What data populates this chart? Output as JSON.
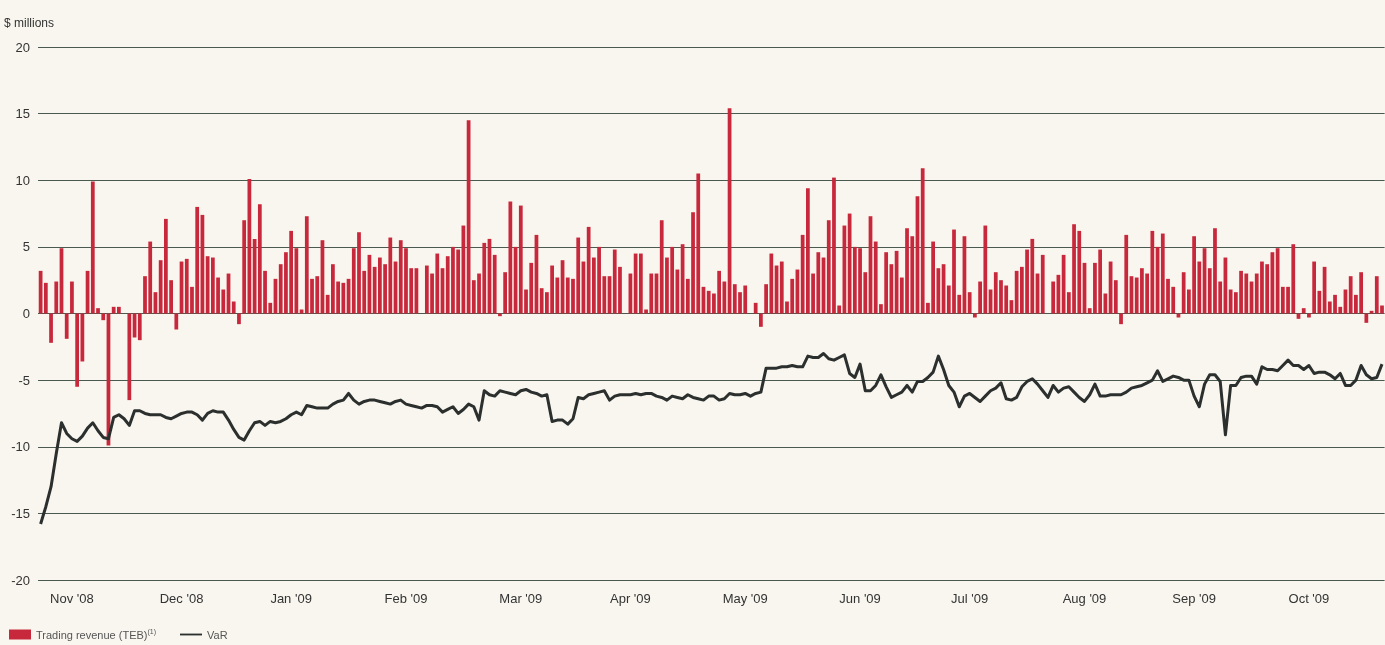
{
  "chart_data": {
    "type": "bar",
    "ylabel": "$ millions",
    "categories": [
      null,
      null,
      null,
      null,
      null,
      null,
      "Nov '08",
      null,
      null,
      null,
      null,
      null,
      null,
      null,
      null,
      null,
      null,
      null,
      null,
      null,
      null,
      null,
      null,
      null,
      null,
      null,
      null,
      "Dec '08",
      null,
      null,
      null,
      null,
      null,
      null,
      null,
      null,
      null,
      null,
      null,
      null,
      null,
      null,
      null,
      null,
      null,
      null,
      null,
      null,
      "Jan '09",
      null,
      null,
      null,
      null,
      null,
      null,
      null,
      null,
      null,
      null,
      null,
      null,
      null,
      null,
      null,
      null,
      null,
      null,
      null,
      null,
      null,
      "Feb '09",
      null,
      null,
      null,
      null,
      null,
      null,
      null,
      null,
      null,
      null,
      null,
      null,
      null,
      null,
      null,
      null,
      null,
      null,
      null,
      null,
      null,
      "Mar '09",
      null,
      null,
      null,
      null,
      null,
      null,
      null,
      null,
      null,
      null,
      null,
      null,
      null,
      null,
      null,
      null,
      null,
      null,
      null,
      null,
      "Apr '09",
      null,
      null,
      null,
      null,
      null,
      null,
      null,
      null,
      null,
      null,
      null,
      null,
      null,
      null,
      null,
      null,
      null,
      null,
      null,
      null,
      null,
      "May '09",
      null,
      null,
      null,
      null,
      null,
      null,
      null,
      null,
      null,
      null,
      null,
      null,
      null,
      null,
      null,
      null,
      null,
      null,
      null,
      null,
      null,
      "Jun '09",
      null,
      null,
      null,
      null,
      null,
      null,
      null,
      null,
      null,
      null,
      null,
      null,
      null,
      null,
      null,
      null,
      null,
      null,
      null,
      null,
      "Jul '09",
      null,
      null,
      null,
      null,
      null,
      null,
      null,
      null,
      null,
      null,
      null,
      null,
      null,
      null,
      null,
      null,
      null,
      null,
      null,
      null,
      null,
      "Aug '09",
      null,
      null,
      null,
      null,
      null,
      null,
      null,
      null,
      null,
      null,
      null,
      null,
      null,
      null,
      null,
      null,
      null,
      null,
      null,
      null,
      "Sep '09",
      null,
      null,
      null,
      null,
      null,
      null,
      null,
      null,
      null,
      null,
      null,
      null,
      null,
      null,
      null,
      null,
      null,
      null,
      null,
      null,
      null,
      "Oct '09",
      null,
      null,
      null,
      null,
      null,
      null,
      null,
      null,
      null,
      null,
      null,
      null,
      null,
      null
    ],
    "series": [
      {
        "name": "Trading revenue (TEB)$^{(1)}$",
        "color": "#c8283c",
        "values": [
          3.2,
          2.3,
          -2.2,
          2.4,
          4.9,
          -1.9,
          2.4,
          -5.5,
          -3.6,
          3.2,
          9.9,
          0.4,
          -0.5,
          -9.9,
          0.5,
          0.5,
          0,
          -6.5,
          -1.8,
          -2.0,
          2.8,
          5.4,
          1.6,
          4.0,
          7.1,
          2.5,
          -1.2,
          3.9,
          4.1,
          2.0,
          8.0,
          7.4,
          4.3,
          4.2,
          2.7,
          1.8,
          3.0,
          0.9,
          -0.8,
          7.0,
          10.1,
          5.6,
          8.2,
          3.2,
          0.8,
          2.6,
          3.7,
          4.6,
          6.2,
          4.9,
          0.3,
          7.3,
          2.6,
          2.8,
          5.5,
          1.4,
          3.7,
          2.4,
          2.3,
          2.6,
          4.9,
          6.1,
          3.2,
          4.4,
          3.5,
          4.2,
          3.7,
          5.7,
          3.9,
          5.5,
          4.9,
          3.4,
          3.4,
          null,
          3.6,
          3.0,
          4.5,
          3.4,
          4.3,
          5.0,
          4.8,
          6.6,
          14.5,
          2.5,
          3.0,
          5.3,
          5.6,
          4.4,
          -0.2,
          3.1,
          8.4,
          5.0,
          8.1,
          1.8,
          3.8,
          5.9,
          1.9,
          1.6,
          3.6,
          2.7,
          4.0,
          2.7,
          2.6,
          5.7,
          3.9,
          6.5,
          4.2,
          5.0,
          2.8,
          2.8,
          4.8,
          3.5,
          null,
          3.0,
          4.5,
          4.5,
          0.3,
          3.0,
          3.0,
          7.0,
          4.2,
          5.0,
          3.3,
          5.2,
          2.6,
          7.6,
          10.5,
          2.0,
          1.7,
          1.5,
          3.2,
          2.4,
          15.4,
          2.2,
          1.6,
          2.1,
          null,
          0.8,
          -1.0,
          2.2,
          4.5,
          3.6,
          3.9,
          0.9,
          2.6,
          3.3,
          5.9,
          9.4,
          3.0,
          4.6,
          4.2,
          7.0,
          10.2,
          0.6,
          6.6,
          7.5,
          5.0,
          4.9,
          3.1,
          7.3,
          5.4,
          0.7,
          4.6,
          3.7,
          4.7,
          2.7,
          6.4,
          5.8,
          8.8,
          10.9,
          0.8,
          5.4,
          3.4,
          3.7,
          2.1,
          6.3,
          1.4,
          5.8,
          1.6,
          -0.3,
          2.4,
          6.6,
          1.8,
          3.1,
          2.5,
          2.1,
          1.0,
          3.2,
          3.5,
          4.8,
          5.6,
          3.0,
          4.4,
          null,
          2.4,
          2.9,
          4.4,
          1.6,
          6.7,
          6.2,
          3.8,
          0.4,
          3.8,
          4.8,
          1.5,
          3.9,
          2.5,
          -0.8,
          5.9,
          2.8,
          2.7,
          3.4,
          3.0,
          6.2,
          5.0,
          6.0,
          2.6,
          2.0,
          -0.3,
          3.1,
          1.8,
          5.8,
          3.9,
          4.9,
          3.4,
          6.4,
          2.4,
          4.2,
          1.8,
          1.6,
          3.2,
          3.0,
          2.4,
          3.0,
          3.9,
          3.7,
          4.6,
          4.9,
          2.0,
          2.0,
          5.2,
          -0.4,
          0.4,
          -0.3,
          3.9,
          1.7,
          3.5,
          0.9,
          1.4,
          0.5,
          1.8,
          2.8,
          1.4,
          3.1,
          -0.7,
          0.2,
          2.8,
          0.6
        ]
      },
      {
        "name": "VaR",
        "type": "line",
        "color": "#2b2f2e",
        "values": [
          -15.8,
          -14.5,
          -13.0,
          -10.5,
          -8.2,
          -9.0,
          -9.4,
          -9.6,
          -9.2,
          -8.6,
          -8.2,
          -8.8,
          -9.3,
          -9.4,
          -7.8,
          -7.6,
          -7.9,
          -8.4,
          -7.3,
          -7.3,
          -7.5,
          -7.6,
          -7.6,
          -7.6,
          -7.8,
          -7.9,
          -7.7,
          -7.5,
          -7.4,
          -7.4,
          -7.6,
          -8.0,
          -7.5,
          -7.3,
          -7.4,
          -7.4,
          -8.0,
          -8.7,
          -9.3,
          -9.5,
          -8.8,
          -8.2,
          -8.1,
          -8.4,
          -8.1,
          -8.2,
          -8.1,
          -7.9,
          -7.6,
          -7.4,
          -7.6,
          -6.9,
          -7.0,
          -7.1,
          -7.1,
          -7.1,
          -6.8,
          -6.6,
          -6.5,
          -6.0,
          -6.5,
          -6.8,
          -6.6,
          -6.5,
          -6.5,
          -6.6,
          -6.7,
          -6.8,
          -6.6,
          -6.5,
          -6.8,
          -6.9,
          -7.0,
          -7.1,
          -6.9,
          -6.9,
          -7.0,
          -7.4,
          -7.2,
          -7.0,
          -7.5,
          -7.2,
          -6.8,
          -7.0,
          -8.0,
          -5.8,
          -6.1,
          -6.2,
          -5.8,
          -5.9,
          -6.0,
          -6.1,
          -5.8,
          -5.7,
          -5.9,
          -6.0,
          -6.2,
          -6.1,
          -8.1,
          -8.0,
          -8.0,
          -8.3,
          -7.9,
          -6.3,
          -6.4,
          -6.1,
          -6.0,
          -5.9,
          -5.8,
          -6.5,
          -6.2,
          -6.1,
          -6.1,
          -6.1,
          -6.0,
          -6.1,
          -6.0,
          -6.0,
          -6.2,
          -6.3,
          -6.5,
          -6.2,
          -6.3,
          -6.4,
          -6.1,
          -6.3,
          -6.4,
          -6.5,
          -6.2,
          -6.2,
          -6.5,
          -6.4,
          -6.0,
          -6.1,
          -6.1,
          -6.0,
          -6.2,
          -6.0,
          -5.9,
          -4.1,
          -4.1,
          -4.1,
          -4.0,
          -4.0,
          -3.9,
          -4.0,
          -4.0,
          -3.2,
          -3.3,
          -3.3,
          -3.0,
          -3.4,
          -3.5,
          -3.3,
          -3.1,
          -4.5,
          -4.8,
          -3.8,
          -5.8,
          -5.8,
          -5.4,
          -4.6,
          -5.5,
          -6.3,
          -6.1,
          -5.9,
          -5.4,
          -5.9,
          -5.1,
          -5.1,
          -4.8,
          -4.4,
          -3.2,
          -4.2,
          -5.4,
          -5.9,
          -7.0,
          -6.2,
          -6.0,
          -6.3,
          -6.6,
          -6.2,
          -5.8,
          -5.6,
          -5.2,
          -6.4,
          -6.5,
          -6.3,
          -5.5,
          -5.1,
          -4.9,
          -5.3,
          -5.8,
          -6.3,
          -5.4,
          -5.9,
          -5.6,
          -5.5,
          -5.9,
          -6.3,
          -6.6,
          -6.1,
          -5.3,
          -6.2,
          -6.2,
          -6.1,
          -6.1,
          -6.1,
          -5.9,
          -5.6,
          -5.5,
          -5.4,
          -5.2,
          -5.0,
          -4.3,
          -5.1,
          -4.9,
          -4.7,
          -4.8,
          -5.0,
          -5.0,
          -6.2,
          -7.0,
          -5.3,
          -4.6,
          -4.6,
          -5.1,
          -9.1,
          -5.4,
          -5.4,
          -4.8,
          -4.7,
          -4.7,
          -5.3,
          -4.0,
          -4.2,
          -4.2,
          -4.3,
          -3.9,
          -3.5,
          -3.9,
          -3.9,
          -4.2,
          -3.9,
          -4.5,
          -4.4,
          -4.4,
          -4.6,
          -4.9,
          -4.5,
          -5.4,
          -5.4,
          -5.0,
          -3.9,
          -4.6,
          -4.9,
          -4.8,
          -3.8
        ]
      }
    ],
    "ylim": [
      -20,
      20
    ],
    "yticks": [
      -20,
      -15,
      -10,
      -5,
      0,
      5,
      10,
      15,
      20
    ],
    "grid": "y",
    "legend": "bottom left",
    "marker": "none"
  }
}
